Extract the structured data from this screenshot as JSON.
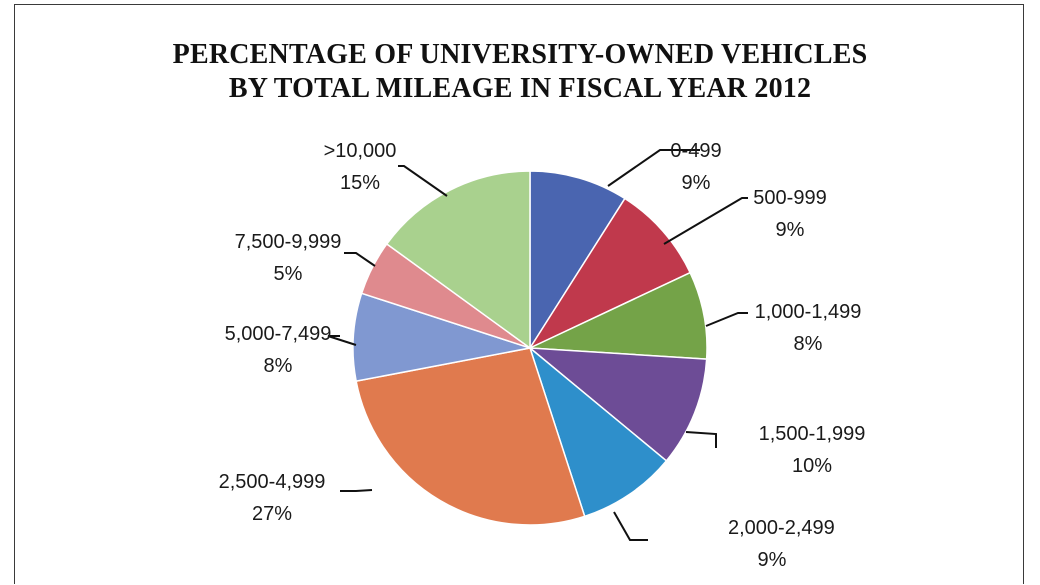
{
  "chart_data": {
    "type": "pie",
    "title": "PERCENTAGE OF UNIVERSITY-OWNED VEHICLES BY TOTAL MILEAGE IN FISCAL YEAR 2012",
    "title_lines": [
      "PERCENTAGE OF UNIVERSITY-OWNED VEHICLES",
      "BY TOTAL MILEAGE IN FISCAL YEAR 2012"
    ],
    "start_angle_deg": 0,
    "direction": "clockwise",
    "slices": [
      {
        "label": "0-499",
        "value": 9,
        "value_label": "9%",
        "color": "#4a65b0"
      },
      {
        "label": "500-999",
        "value": 9,
        "value_label": "9%",
        "color": "#c0394c"
      },
      {
        "label": "1,000-1,499",
        "value": 8,
        "value_label": "8%",
        "color": "#74a348"
      },
      {
        "label": "1,500-1,999",
        "value": 10,
        "value_label": "10%",
        "color": "#6d4c96"
      },
      {
        "label": "2,000-2,499",
        "value": 9,
        "value_label": "9%",
        "color": "#2e8fcb"
      },
      {
        "label": "2,500-4,999",
        "value": 27,
        "value_label": "27%",
        "color": "#e07a4e"
      },
      {
        "label": "5,000-7,499",
        "value": 8,
        "value_label": "8%",
        "color": "#8098d1"
      },
      {
        "label": "7,500-9,999",
        "value": 5,
        "value_label": "5%",
        "color": "#df8a8e"
      },
      {
        "label": ">10,000",
        "value": 15,
        "value_label": "15%",
        "color": "#a9d18e"
      }
    ]
  }
}
